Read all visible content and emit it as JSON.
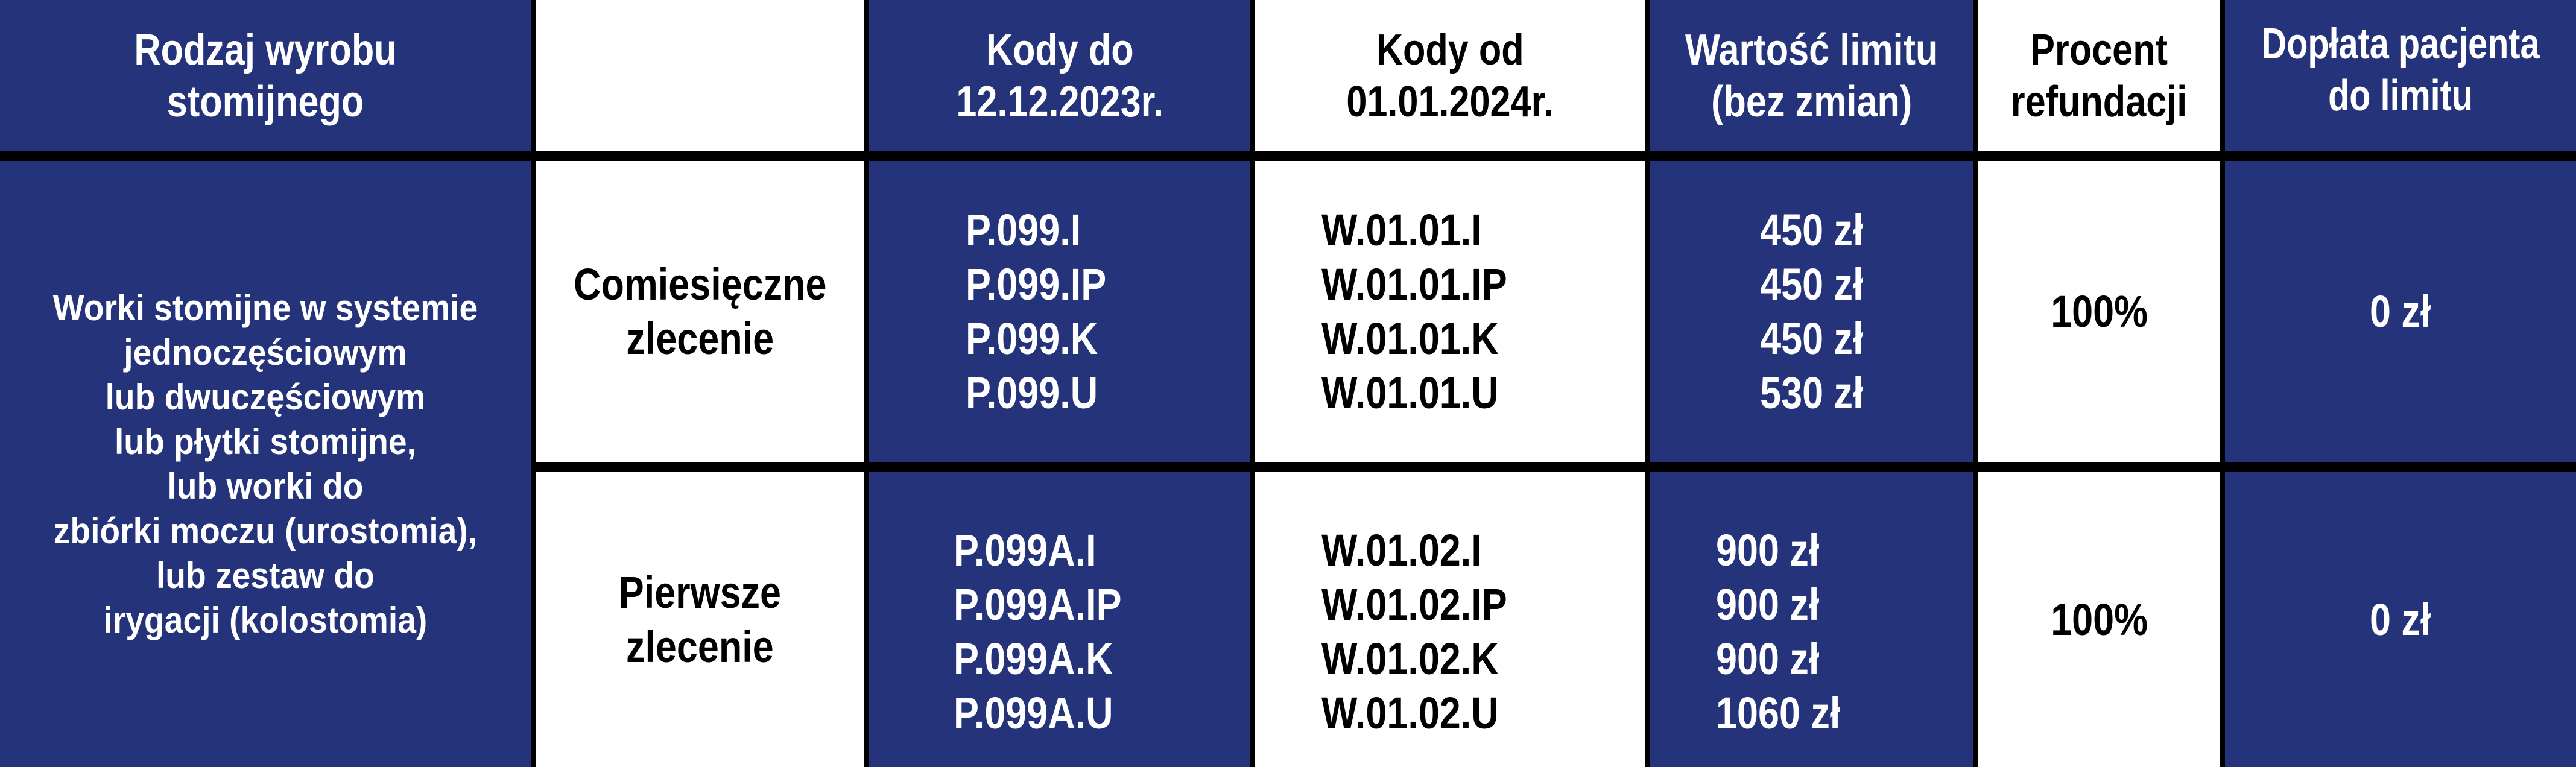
{
  "colors": {
    "navy": "#25347a",
    "white": "#ffffff",
    "border": "#000000"
  },
  "header": {
    "product_type": [
      "Rodzaj wyrobu",
      "stomijnego"
    ],
    "order_type": "",
    "codes_until": [
      "Kody do",
      "12.12.2023r."
    ],
    "codes_from": [
      "Kody od",
      "01.01.2024r."
    ],
    "limit_value": [
      "Wartość limitu",
      "(bez zmian)"
    ],
    "refund_percent": [
      "Procent",
      "refundacji"
    ],
    "patient_copay": [
      "Dopłata pacjenta",
      "do limitu"
    ]
  },
  "product": [
    "Worki stomijne w systemie",
    "jednoczęściowym",
    "lub dwuczęściowym",
    "lub płytki stomijne,",
    "lub worki do",
    "zbiórki moczu (urostomia),",
    "lub zestaw do",
    "irygacji (kolostomia)"
  ],
  "rows": [
    {
      "order": [
        "Comiesięczne",
        "zlecenie"
      ],
      "old_codes": [
        "P.099.I",
        "P.099.IP",
        "P.099.K",
        "P.099.U"
      ],
      "new_codes": [
        "W.01.01.I",
        "W.01.01.IP",
        "W.01.01.K",
        "W.01.01.U"
      ],
      "limits": [
        "450 zł",
        "450 zł",
        "450 zł",
        "530 zł"
      ],
      "percent": "100%",
      "copay": "0 zł"
    },
    {
      "order": [
        "Pierwsze",
        "zlecenie"
      ],
      "old_codes": [
        "P.099A.I",
        "P.099A.IP",
        "P.099A.K",
        "P.099A.U"
      ],
      "new_codes": [
        "W.01.02.I",
        "W.01.02.IP",
        "W.01.02.K",
        "W.01.02.U"
      ],
      "limits": [
        "900 zł",
        "900 zł",
        "900 zł",
        "1060 zł"
      ],
      "percent": "100%",
      "copay": "0 zł"
    }
  ]
}
